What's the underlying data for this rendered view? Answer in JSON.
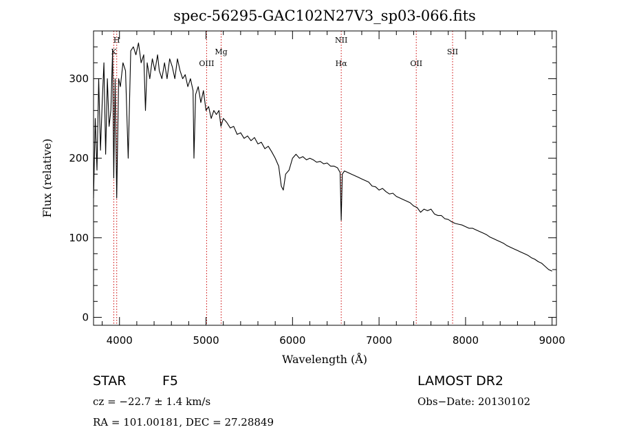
{
  "chart_data": {
    "type": "line",
    "title": "spec-56295-GAC102N27V3_sp03-066.fits",
    "xlabel": "Wavelength (Å)",
    "ylabel": "Flux (relative)",
    "xlim": [
      3700,
      9050
    ],
    "ylim": [
      -10,
      360
    ],
    "xticks": [
      4000,
      5000,
      6000,
      7000,
      8000,
      9000
    ],
    "yticks": [
      0,
      100,
      200,
      300
    ],
    "grid": false,
    "series_color": "#000000",
    "series": [
      {
        "points": [
          [
            3700,
            150
          ],
          [
            3720,
            250
          ],
          [
            3740,
            185
          ],
          [
            3760,
            300
          ],
          [
            3780,
            210
          ],
          [
            3800,
            270
          ],
          [
            3820,
            320
          ],
          [
            3840,
            205
          ],
          [
            3860,
            300
          ],
          [
            3880,
            240
          ],
          [
            3900,
            260
          ],
          [
            3920,
            335
          ],
          [
            3934,
            175
          ],
          [
            3950,
            300
          ],
          [
            3968,
            150
          ],
          [
            3990,
            300
          ],
          [
            4010,
            290
          ],
          [
            4040,
            320
          ],
          [
            4070,
            310
          ],
          [
            4101,
            200
          ],
          [
            4130,
            335
          ],
          [
            4160,
            340
          ],
          [
            4190,
            330
          ],
          [
            4220,
            345
          ],
          [
            4250,
            320
          ],
          [
            4280,
            330
          ],
          [
            4300,
            260
          ],
          [
            4320,
            320
          ],
          [
            4350,
            300
          ],
          [
            4380,
            325
          ],
          [
            4410,
            310
          ],
          [
            4440,
            330
          ],
          [
            4460,
            310
          ],
          [
            4490,
            300
          ],
          [
            4520,
            320
          ],
          [
            4550,
            300
          ],
          [
            4580,
            325
          ],
          [
            4610,
            315
          ],
          [
            4640,
            300
          ],
          [
            4670,
            325
          ],
          [
            4700,
            310
          ],
          [
            4730,
            300
          ],
          [
            4760,
            305
          ],
          [
            4790,
            290
          ],
          [
            4820,
            300
          ],
          [
            4850,
            285
          ],
          [
            4861,
            200
          ],
          [
            4880,
            280
          ],
          [
            4910,
            290
          ],
          [
            4940,
            270
          ],
          [
            4970,
            285
          ],
          [
            5000,
            260
          ],
          [
            5030,
            265
          ],
          [
            5060,
            250
          ],
          [
            5090,
            260
          ],
          [
            5120,
            255
          ],
          [
            5150,
            260
          ],
          [
            5172,
            240
          ],
          [
            5200,
            250
          ],
          [
            5240,
            245
          ],
          [
            5280,
            238
          ],
          [
            5320,
            240
          ],
          [
            5360,
            230
          ],
          [
            5400,
            232
          ],
          [
            5440,
            225
          ],
          [
            5480,
            228
          ],
          [
            5520,
            222
          ],
          [
            5560,
            226
          ],
          [
            5600,
            218
          ],
          [
            5640,
            220
          ],
          [
            5680,
            212
          ],
          [
            5720,
            215
          ],
          [
            5760,
            208
          ],
          [
            5800,
            200
          ],
          [
            5840,
            190
          ],
          [
            5870,
            165
          ],
          [
            5893,
            160
          ],
          [
            5920,
            180
          ],
          [
            5960,
            185
          ],
          [
            6000,
            200
          ],
          [
            6040,
            205
          ],
          [
            6080,
            200
          ],
          [
            6120,
            202
          ],
          [
            6160,
            198
          ],
          [
            6200,
            200
          ],
          [
            6240,
            198
          ],
          [
            6280,
            195
          ],
          [
            6320,
            196
          ],
          [
            6360,
            193
          ],
          [
            6400,
            194
          ],
          [
            6440,
            190
          ],
          [
            6480,
            190
          ],
          [
            6520,
            188
          ],
          [
            6550,
            182
          ],
          [
            6563,
            122
          ],
          [
            6575,
            180
          ],
          [
            6600,
            184
          ],
          [
            6640,
            182
          ],
          [
            6680,
            180
          ],
          [
            6720,
            178
          ],
          [
            6760,
            176
          ],
          [
            6800,
            174
          ],
          [
            6840,
            172
          ],
          [
            6880,
            170
          ],
          [
            6920,
            165
          ],
          [
            6960,
            164
          ],
          [
            7000,
            160
          ],
          [
            7040,
            162
          ],
          [
            7080,
            158
          ],
          [
            7120,
            155
          ],
          [
            7160,
            156
          ],
          [
            7200,
            152
          ],
          [
            7240,
            150
          ],
          [
            7280,
            148
          ],
          [
            7320,
            146
          ],
          [
            7360,
            144
          ],
          [
            7400,
            140
          ],
          [
            7440,
            138
          ],
          [
            7480,
            132
          ],
          [
            7520,
            136
          ],
          [
            7560,
            134
          ],
          [
            7600,
            136
          ],
          [
            7640,
            130
          ],
          [
            7680,
            128
          ],
          [
            7720,
            128
          ],
          [
            7760,
            124
          ],
          [
            7800,
            123
          ],
          [
            7840,
            120
          ],
          [
            7880,
            118
          ],
          [
            7920,
            117
          ],
          [
            7960,
            116
          ],
          [
            8000,
            114
          ],
          [
            8040,
            112
          ],
          [
            8080,
            112
          ],
          [
            8120,
            110
          ],
          [
            8160,
            108
          ],
          [
            8200,
            106
          ],
          [
            8240,
            104
          ],
          [
            8280,
            101
          ],
          [
            8320,
            99
          ],
          [
            8360,
            97
          ],
          [
            8400,
            95
          ],
          [
            8440,
            93
          ],
          [
            8480,
            90
          ],
          [
            8520,
            88
          ],
          [
            8560,
            86
          ],
          [
            8600,
            84
          ],
          [
            8640,
            82
          ],
          [
            8680,
            80
          ],
          [
            8720,
            78
          ],
          [
            8760,
            75
          ],
          [
            8800,
            73
          ],
          [
            8840,
            70
          ],
          [
            8880,
            68
          ],
          [
            8920,
            64
          ],
          [
            8960,
            60
          ],
          [
            9000,
            58
          ]
        ]
      }
    ],
    "reference_lines": {
      "color": "#cc0000",
      "wavelengths": [
        3934,
        3968,
        5007,
        5175,
        6563,
        7430,
        7850
      ]
    },
    "line_labels": [
      {
        "text": "H",
        "x": 3968,
        "row": 0
      },
      {
        "text": "K",
        "x": 3934,
        "row": 1
      },
      {
        "text": "Mg",
        "x": 5175,
        "row": 1
      },
      {
        "text": "OIII",
        "x": 5007,
        "row": 2
      },
      {
        "text": "NII",
        "x": 6563,
        "row": 0
      },
      {
        "text": "Hα",
        "x": 6563,
        "row": 2
      },
      {
        "text": "OII",
        "x": 7430,
        "row": 2
      },
      {
        "text": "SII",
        "x": 7850,
        "row": 1
      }
    ]
  },
  "info": {
    "class": "STAR",
    "subclass": "F5",
    "survey": "LAMOST DR2",
    "cz": "cz = −22.7 ± 1.4 km/s",
    "obs_date": "Obs−Date: 20130102",
    "coords": "RA = 101.00181, DEC =  27.28849"
  }
}
